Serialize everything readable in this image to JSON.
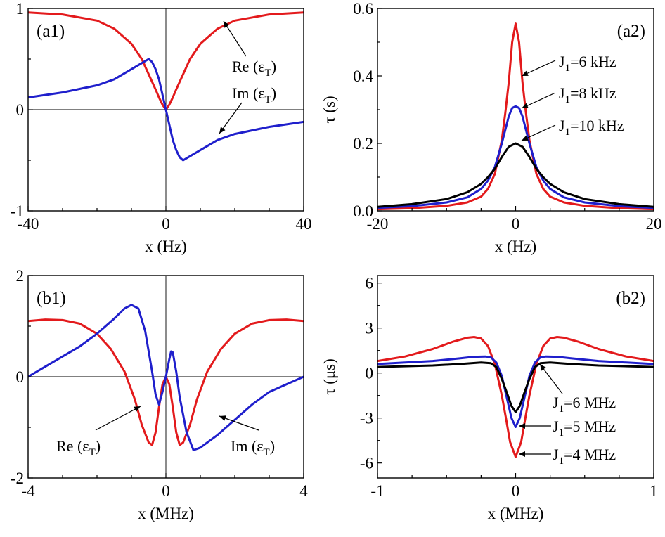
{
  "chart_data": [
    {
      "id": "a1",
      "type": "line",
      "panel_label": "(a1)",
      "xlabel": "x (Hz)",
      "ylabel": "",
      "xlim": [
        -40,
        40
      ],
      "ylim": [
        -1,
        1
      ],
      "xticks": [
        -40,
        0,
        40
      ],
      "xtick_labels": [
        "-40",
        "0",
        "40"
      ],
      "yticks": [
        -1,
        0,
        1
      ],
      "ytick_labels": [
        "-1",
        "0",
        "1"
      ],
      "zero_lines": {
        "x": true,
        "y": true
      },
      "series": [
        {
          "name": "Re(εT)",
          "color": "#e31a1c",
          "x": [
            -40,
            -30,
            -20,
            -15,
            -10,
            -7,
            -5,
            -3,
            -2,
            -1,
            0,
            1,
            2,
            3,
            5,
            7,
            10,
            15,
            20,
            30,
            40
          ],
          "y": [
            0.96,
            0.94,
            0.88,
            0.8,
            0.65,
            0.5,
            0.35,
            0.2,
            0.12,
            0.05,
            0.0,
            0.05,
            0.12,
            0.2,
            0.35,
            0.5,
            0.65,
            0.8,
            0.88,
            0.94,
            0.96
          ]
        },
        {
          "name": "Im(εT)",
          "color": "#1f1fcc",
          "x": [
            -40,
            -30,
            -20,
            -15,
            -10,
            -7,
            -5,
            -4,
            -3,
            -2,
            -1,
            0,
            1,
            2,
            3,
            4,
            5,
            7,
            10,
            15,
            20,
            30,
            40
          ],
          "y": [
            0.12,
            0.17,
            0.24,
            0.3,
            0.4,
            0.46,
            0.5,
            0.47,
            0.4,
            0.3,
            0.15,
            0.0,
            -0.15,
            -0.3,
            -0.4,
            -0.47,
            -0.5,
            -0.46,
            -0.4,
            -0.3,
            -0.24,
            -0.17,
            -0.12
          ]
        }
      ],
      "annotations": [
        {
          "base": "Re",
          "sub": "T"
        },
        {
          "base": "Im",
          "sub": "T"
        }
      ]
    },
    {
      "id": "a2",
      "type": "line",
      "panel_label": "(a2)",
      "xlabel": "x (Hz)",
      "ylabel": "τ (s)",
      "xlim": [
        -20,
        20
      ],
      "ylim": [
        0,
        0.6
      ],
      "xticks": [
        -20,
        0,
        20
      ],
      "xtick_labels": [
        "-20",
        "0",
        "20"
      ],
      "yticks": [
        0,
        0.2,
        0.4,
        0.6
      ],
      "ytick_labels": [
        "0.0",
        "0.2",
        "0.4",
        "0.6"
      ],
      "zero_lines": {
        "x": false,
        "y": false
      },
      "series": [
        {
          "name": "J1=6kHz",
          "color": "#e31a1c",
          "x": [
            -20,
            -15,
            -10,
            -7,
            -5,
            -4,
            -3,
            -2,
            -1.5,
            -1,
            -0.5,
            0,
            0.5,
            1,
            1.5,
            2,
            3,
            4,
            5,
            7,
            10,
            15,
            20
          ],
          "y": [
            0.005,
            0.008,
            0.015,
            0.025,
            0.042,
            0.065,
            0.11,
            0.21,
            0.29,
            0.38,
            0.5,
            0.555,
            0.5,
            0.38,
            0.29,
            0.21,
            0.11,
            0.065,
            0.042,
            0.025,
            0.015,
            0.008,
            0.005
          ]
        },
        {
          "name": "J1=8kHz",
          "color": "#1f1fcc",
          "x": [
            -20,
            -15,
            -10,
            -7,
            -5,
            -4,
            -3,
            -2,
            -1,
            -0.5,
            0,
            0.5,
            1,
            2,
            3,
            4,
            5,
            7,
            10,
            15,
            20
          ],
          "y": [
            0.009,
            0.014,
            0.025,
            0.04,
            0.065,
            0.09,
            0.13,
            0.2,
            0.28,
            0.305,
            0.31,
            0.305,
            0.28,
            0.2,
            0.13,
            0.09,
            0.065,
            0.04,
            0.025,
            0.014,
            0.009
          ]
        },
        {
          "name": "J1=10kHz",
          "color": "#000000",
          "x": [
            -20,
            -15,
            -10,
            -7,
            -5,
            -4,
            -3,
            -2,
            -1,
            0,
            1,
            2,
            3,
            4,
            5,
            7,
            10,
            15,
            20
          ],
          "y": [
            0.012,
            0.02,
            0.035,
            0.055,
            0.08,
            0.1,
            0.125,
            0.16,
            0.19,
            0.2,
            0.19,
            0.16,
            0.125,
            0.1,
            0.08,
            0.055,
            0.035,
            0.02,
            0.012
          ]
        }
      ],
      "annotations": [
        {
          "base": "J",
          "sub": "1",
          "rest": "=6 kHz"
        },
        {
          "base": "J",
          "sub": "1",
          "rest": "=8 kHz"
        },
        {
          "base": "J",
          "sub": "1",
          "rest": "=10 kHz"
        }
      ]
    },
    {
      "id": "b1",
      "type": "line",
      "panel_label": "(b1)",
      "xlabel": "x (MHz)",
      "ylabel": "",
      "xlim": [
        -4,
        4
      ],
      "ylim": [
        -2,
        2
      ],
      "xticks": [
        -4,
        0,
        4
      ],
      "xtick_labels": [
        "-4",
        "0",
        "4"
      ],
      "yticks": [
        -2,
        0,
        2
      ],
      "ytick_labels": [
        "-2",
        "0",
        "2"
      ],
      "zero_lines": {
        "x": true,
        "y": true
      },
      "series": [
        {
          "name": "Re(εT)",
          "color": "#e31a1c",
          "x": [
            -4,
            -3.5,
            -3,
            -2.5,
            -2,
            -1.6,
            -1.2,
            -0.9,
            -0.7,
            -0.5,
            -0.4,
            -0.3,
            -0.2,
            -0.1,
            0,
            0.1,
            0.2,
            0.3,
            0.4,
            0.5,
            0.7,
            0.9,
            1.2,
            1.6,
            2,
            2.5,
            3,
            3.5,
            4
          ],
          "y": [
            1.1,
            1.13,
            1.12,
            1.05,
            0.85,
            0.55,
            0.1,
            -0.45,
            -0.95,
            -1.3,
            -1.35,
            -1.1,
            -0.6,
            -0.15,
            0.0,
            -0.15,
            -0.6,
            -1.1,
            -1.35,
            -1.3,
            -0.95,
            -0.45,
            0.1,
            0.55,
            0.85,
            1.05,
            1.12,
            1.13,
            1.1
          ]
        },
        {
          "name": "Im(εT)",
          "color": "#1f1fcc",
          "x": [
            -4,
            -3.5,
            -3,
            -2.5,
            -2,
            -1.5,
            -1.2,
            -1,
            -0.8,
            -0.6,
            -0.4,
            -0.3,
            -0.2,
            -0.1,
            0,
            0.1,
            0.15,
            0.2,
            0.3,
            0.4,
            0.6,
            0.8,
            1,
            1.2,
            1.5,
            2,
            2.5,
            3,
            3.5,
            4
          ],
          "y": [
            0.0,
            0.2,
            0.4,
            0.6,
            0.85,
            1.15,
            1.35,
            1.42,
            1.35,
            0.9,
            0.1,
            -0.35,
            -0.55,
            -0.3,
            0.0,
            0.35,
            0.5,
            0.48,
            0.1,
            -0.4,
            -1.1,
            -1.45,
            -1.4,
            -1.3,
            -1.15,
            -0.85,
            -0.55,
            -0.3,
            -0.15,
            0.0
          ]
        }
      ],
      "annotations": [
        {
          "base": "Re",
          "sub": "T"
        },
        {
          "base": "Im",
          "sub": "T"
        }
      ]
    },
    {
      "id": "b2",
      "type": "line",
      "panel_label": "(b2)",
      "xlabel": "x (MHz)",
      "ylabel": "τ (μs)",
      "xlim": [
        -1,
        1
      ],
      "ylim": [
        -7,
        6.5
      ],
      "xticks": [
        -1,
        0,
        1
      ],
      "xtick_labels": [
        "-1",
        "0",
        "1"
      ],
      "yticks": [
        -6,
        -3,
        0,
        3,
        6
      ],
      "ytick_labels": [
        "-6",
        "-3",
        "0",
        "3",
        "6"
      ],
      "zero_lines": {
        "x": false,
        "y": false
      },
      "series": [
        {
          "name": "J1=4MHz",
          "color": "#e31a1c",
          "x": [
            -1,
            -0.8,
            -0.6,
            -0.45,
            -0.35,
            -0.3,
            -0.25,
            -0.2,
            -0.15,
            -0.1,
            -0.07,
            -0.04,
            0,
            0.04,
            0.07,
            0.1,
            0.15,
            0.2,
            0.25,
            0.3,
            0.35,
            0.45,
            0.6,
            0.8,
            1
          ],
          "y": [
            0.8,
            1.1,
            1.6,
            2.1,
            2.35,
            2.4,
            2.3,
            1.8,
            0.6,
            -1.5,
            -3.0,
            -4.6,
            -5.6,
            -4.6,
            -3.0,
            -1.5,
            0.6,
            1.8,
            2.3,
            2.4,
            2.35,
            2.1,
            1.6,
            1.1,
            0.8
          ]
        },
        {
          "name": "J1=5MHz",
          "color": "#1f1fcc",
          "x": [
            -1,
            -0.6,
            -0.4,
            -0.3,
            -0.22,
            -0.18,
            -0.14,
            -0.1,
            -0.06,
            -0.03,
            0,
            0.03,
            0.06,
            0.1,
            0.14,
            0.18,
            0.22,
            0.3,
            0.4,
            0.6,
            1
          ],
          "y": [
            0.6,
            0.8,
            0.98,
            1.08,
            1.1,
            1.05,
            0.7,
            -0.2,
            -1.8,
            -3.0,
            -3.6,
            -3.0,
            -1.8,
            -0.2,
            0.7,
            1.05,
            1.1,
            1.08,
            0.98,
            0.8,
            0.6
          ]
        },
        {
          "name": "J1=6MHz",
          "color": "#000000",
          "x": [
            -1,
            -0.6,
            -0.4,
            -0.25,
            -0.18,
            -0.14,
            -0.1,
            -0.06,
            -0.03,
            0,
            0.03,
            0.06,
            0.1,
            0.14,
            0.18,
            0.25,
            0.4,
            0.6,
            1
          ],
          "y": [
            0.4,
            0.5,
            0.6,
            0.7,
            0.65,
            0.4,
            -0.4,
            -1.4,
            -2.2,
            -2.6,
            -2.2,
            -1.4,
            -0.4,
            0.4,
            0.65,
            0.7,
            0.6,
            0.5,
            0.4
          ]
        }
      ],
      "annotations": [
        {
          "base": "J",
          "sub": "1",
          "rest": "=6 MHz"
        },
        {
          "base": "J",
          "sub": "1",
          "rest": "=5 MHz"
        },
        {
          "base": "J",
          "sub": "1",
          "rest": "=4 MHz"
        }
      ]
    }
  ]
}
